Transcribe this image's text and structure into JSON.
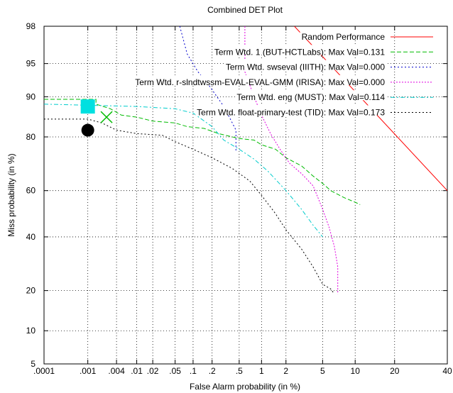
{
  "chart_data": {
    "type": "line",
    "title": "Combined DET Plot",
    "xlabel": "False Alarm probability (in %)",
    "ylabel": "Miss probability (in %)",
    "xscale": "normal-deviate",
    "yscale": "normal-deviate",
    "xlim": [
      0.0001,
      40
    ],
    "ylim": [
      5,
      98
    ],
    "x_ticks": [
      {
        "value": 0.0001,
        "label": ".0001"
      },
      {
        "value": 0.001,
        "label": ".001"
      },
      {
        "value": 0.004,
        "label": ".004"
      },
      {
        "value": 0.01,
        "label": ".01"
      },
      {
        "value": 0.02,
        "label": ".02"
      },
      {
        "value": 0.05,
        "label": ".05"
      },
      {
        "value": 0.1,
        "label": ".1"
      },
      {
        "value": 0.2,
        "label": ".2"
      },
      {
        "value": 0.5,
        "label": ".5"
      },
      {
        "value": 1,
        "label": "1"
      },
      {
        "value": 2,
        "label": "2"
      },
      {
        "value": 5,
        "label": "5"
      },
      {
        "value": 10,
        "label": "10"
      },
      {
        "value": 20,
        "label": "20"
      },
      {
        "value": 40,
        "label": "40"
      }
    ],
    "y_ticks": [
      {
        "value": 5,
        "label": "5"
      },
      {
        "value": 10,
        "label": "10"
      },
      {
        "value": 20,
        "label": "20"
      },
      {
        "value": 40,
        "label": "40"
      },
      {
        "value": 60,
        "label": "60"
      },
      {
        "value": 80,
        "label": "80"
      },
      {
        "value": 90,
        "label": "90"
      },
      {
        "value": 95,
        "label": "95"
      },
      {
        "value": 98,
        "label": "98"
      }
    ],
    "grid": true,
    "legend_position": "top-right",
    "series": [
      {
        "name": "Random Performance",
        "color": "#ff0000",
        "dash": "solid",
        "points": [
          [
            2.5,
            98
          ],
          [
            40,
            60
          ]
        ]
      },
      {
        "name": "Term Wtd. 1 (BUT-HCTLabs): Max Val=0.131",
        "color": "#00bb00",
        "dash": "6,3",
        "points": [
          [
            0.0001,
            89.5
          ],
          [
            0.0015,
            89.5
          ],
          [
            0.0015,
            88.5
          ],
          [
            0.003,
            87.5
          ],
          [
            0.005,
            86
          ],
          [
            0.01,
            85.5
          ],
          [
            0.02,
            84.5
          ],
          [
            0.05,
            84
          ],
          [
            0.08,
            83
          ],
          [
            0.15,
            82.5
          ],
          [
            0.25,
            81
          ],
          [
            0.5,
            79.5
          ],
          [
            0.8,
            79
          ],
          [
            1.0,
            77.5
          ],
          [
            1.5,
            76
          ],
          [
            2.0,
            73
          ],
          [
            3.0,
            70
          ],
          [
            4.0,
            66
          ],
          [
            5.0,
            63
          ],
          [
            6.0,
            60
          ],
          [
            8.0,
            57
          ],
          [
            10.0,
            55
          ],
          [
            11.0,
            54
          ]
        ]
      },
      {
        "name": "Term Wtd. swseval (IIITH): Max Val=0.000",
        "color": "#0000cc",
        "dash": "2,3",
        "points": [
          [
            0.06,
            98
          ],
          [
            0.08,
            96
          ],
          [
            0.12,
            94
          ],
          [
            0.18,
            92
          ],
          [
            0.3,
            88
          ],
          [
            0.4,
            84
          ],
          [
            0.45,
            82
          ],
          [
            0.45,
            75
          ]
        ]
      },
      {
        "name": "Term Wtd. r-slndtwssm-EVAL-EVAL-GMM (IRISA): Max Val=0.000",
        "color": "#e000e0",
        "dash": "2,2",
        "points": [
          [
            0.6,
            98
          ],
          [
            0.6,
            94
          ],
          [
            0.8,
            90
          ],
          [
            1.0,
            86
          ],
          [
            1.3,
            81
          ],
          [
            1.7,
            76
          ],
          [
            2.2,
            71
          ],
          [
            3.0,
            67
          ],
          [
            4.0,
            62
          ],
          [
            5.0,
            52
          ],
          [
            5.8,
            44
          ],
          [
            6.5,
            36
          ],
          [
            7.0,
            28
          ],
          [
            7.0,
            19
          ]
        ]
      },
      {
        "name": "Term Wtd. eng (MUST): Max Val=0.114",
        "color": "#00cccc",
        "dash": "6,3,2,3",
        "points": [
          [
            0.0001,
            88.5
          ],
          [
            0.01,
            88
          ],
          [
            0.05,
            87.5
          ],
          [
            0.1,
            86.5
          ],
          [
            0.2,
            83
          ],
          [
            0.3,
            79
          ],
          [
            0.5,
            76
          ],
          [
            0.8,
            72.5
          ],
          [
            1.2,
            68
          ],
          [
            2.0,
            60
          ],
          [
            3.0,
            52
          ],
          [
            4.0,
            45
          ],
          [
            5.0,
            40
          ]
        ]
      },
      {
        "name": "Term Wtd. float-primary-test (TID): Max Val=0.173",
        "color": "#000000",
        "dash": "2,3",
        "points": [
          [
            0.0001,
            85
          ],
          [
            0.001,
            85
          ],
          [
            0.002,
            84
          ],
          [
            0.004,
            82
          ],
          [
            0.01,
            81
          ],
          [
            0.03,
            80.5
          ],
          [
            0.05,
            78.5
          ],
          [
            0.1,
            76
          ],
          [
            0.2,
            73
          ],
          [
            0.4,
            69
          ],
          [
            0.7,
            64
          ],
          [
            1.0,
            58
          ],
          [
            1.5,
            50
          ],
          [
            2.0,
            43
          ],
          [
            3.0,
            35
          ],
          [
            4.0,
            28
          ],
          [
            5.0,
            22
          ],
          [
            6.0,
            20.5
          ],
          [
            6.5,
            19
          ]
        ]
      }
    ],
    "markers": [
      {
        "shape": "square",
        "color": "#00e0e0",
        "x": 0.001,
        "y": 88
      },
      {
        "shape": "x",
        "color": "#00bb00",
        "x": 0.0025,
        "y": 85.5
      },
      {
        "shape": "circle",
        "color": "#000000",
        "x": 0.001,
        "y": 82
      }
    ]
  }
}
